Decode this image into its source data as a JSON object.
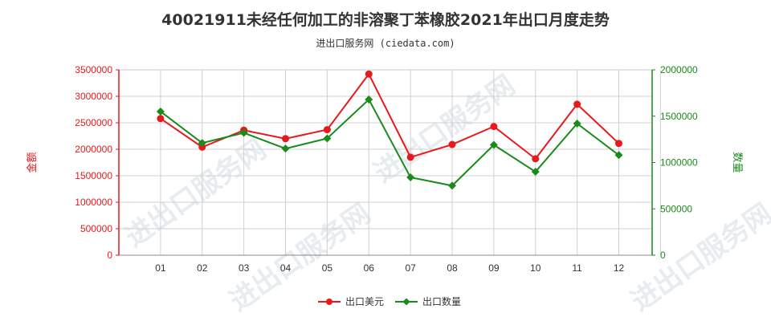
{
  "page": {
    "title": "40021911未经任何加工的非溶聚丁苯橡胶2021年出口月度走势",
    "subtitle": "进出口服务网 (ciedata.com)",
    "watermark": "进出口服务网"
  },
  "chart_data": {
    "type": "line",
    "categories": [
      "01",
      "02",
      "03",
      "04",
      "05",
      "06",
      "07",
      "08",
      "09",
      "10",
      "11",
      "12"
    ],
    "y_left": {
      "label": "金额",
      "range": [
        0,
        3500000
      ],
      "ticks": [
        "0",
        "500000",
        "1000000",
        "1500000",
        "2000000",
        "2500000",
        "3000000",
        "3500000"
      ],
      "color": "#e8191c"
    },
    "y_right": {
      "label": "数量",
      "range": [
        0,
        2000000
      ],
      "ticks": [
        "0",
        "500000",
        "1000000",
        "1500000",
        "2000000"
      ],
      "color": "#1a8a1a"
    },
    "series": [
      {
        "name": "出口美元",
        "axis": "left",
        "color": "#e8191c",
        "values": [
          2580000,
          2040000,
          2360000,
          2200000,
          2370000,
          3420000,
          1850000,
          2090000,
          2430000,
          1820000,
          2850000,
          2110000
        ]
      },
      {
        "name": "出口数量",
        "axis": "right",
        "color": "#1a8a1a",
        "values": [
          1550000,
          1210000,
          1320000,
          1150000,
          1260000,
          1680000,
          840000,
          750000,
          1190000,
          900000,
          1420000,
          1080000
        ]
      }
    ],
    "grid": true,
    "legend": "bottom"
  }
}
